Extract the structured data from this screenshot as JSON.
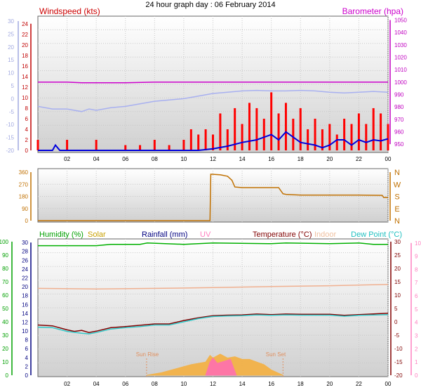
{
  "title": "24 hour graph day : 06 February 2014",
  "chart_data": [
    {
      "type": "line",
      "id": "wind_pressure",
      "title": "24 hour graph day : 06 February 2014",
      "x_ticks": [
        "02",
        "04",
        "06",
        "08",
        "10",
        "12",
        "14",
        "16",
        "18",
        "20",
        "22",
        "00"
      ],
      "x_range_hours": [
        0,
        24
      ],
      "legend": {
        "windspeed": "Windspeed (kts)",
        "barometer": "Barometer (hpa)"
      },
      "axes": {
        "temperature_left": {
          "ticks": [
            30,
            25,
            20,
            15,
            10,
            5,
            0,
            -5,
            -10,
            -15,
            -20
          ],
          "range": [
            -20,
            30
          ],
          "color": "#a0a0e0"
        },
        "windspeed_left": {
          "ticks": [
            24,
            22,
            20,
            18,
            16,
            14,
            12,
            10,
            8,
            6,
            4,
            2,
            0
          ],
          "range": [
            0,
            24.5
          ],
          "color": "#d00000"
        },
        "barometer_right": {
          "ticks": [
            1050,
            1040,
            1030,
            1020,
            1010,
            1000,
            990,
            980,
            970,
            960,
            950
          ],
          "range": [
            945,
            1052
          ],
          "color": "#c000c0"
        }
      },
      "series": [
        {
          "name": "Barometer (hpa)",
          "axis": "barometer_right",
          "color": "#cc00cc",
          "points": [
            [
              0,
              1000
            ],
            [
              2,
              1000
            ],
            [
              3,
              999.5
            ],
            [
              6,
              999.5
            ],
            [
              8,
              1000
            ],
            [
              9,
              1000
            ],
            [
              12,
              1000
            ],
            [
              14,
              1000
            ],
            [
              16,
              1000
            ],
            [
              18,
              1000
            ],
            [
              20,
              1000
            ],
            [
              22,
              1000
            ],
            [
              24,
              1000
            ]
          ]
        },
        {
          "name": "Dew Point",
          "axis": "temperature_left",
          "color": "#a8b0f0",
          "points": [
            [
              0,
              -3
            ],
            [
              1,
              -4
            ],
            [
              2,
              -4
            ],
            [
              3,
              -5
            ],
            [
              3.5,
              -4
            ],
            [
              4,
              -4.5
            ],
            [
              5,
              -3.5
            ],
            [
              6,
              -3
            ],
            [
              7,
              -2
            ],
            [
              8,
              -1
            ],
            [
              9,
              -0.5
            ],
            [
              10,
              0
            ],
            [
              11,
              1
            ],
            [
              12,
              2
            ],
            [
              13,
              2.5
            ],
            [
              14,
              3
            ],
            [
              15,
              3.2
            ],
            [
              16,
              3
            ],
            [
              17,
              3
            ],
            [
              18,
              3.2
            ],
            [
              19,
              3
            ],
            [
              20,
              2.5
            ],
            [
              21,
              2.2
            ],
            [
              22,
              2.5
            ],
            [
              23,
              2.8
            ],
            [
              24,
              2.5
            ]
          ]
        },
        {
          "name": "Wind gust",
          "axis": "windspeed_left",
          "color": "#ff0000",
          "points": [
            [
              0,
              2
            ],
            [
              2,
              2
            ],
            [
              4,
              2
            ],
            [
              6,
              1
            ],
            [
              7,
              1
            ],
            [
              8,
              2
            ],
            [
              9,
              1
            ],
            [
              10,
              2
            ],
            [
              10.5,
              4
            ],
            [
              11,
              3
            ],
            [
              11.5,
              4
            ],
            [
              12,
              3
            ],
            [
              12.5,
              7
            ],
            [
              13,
              4
            ],
            [
              13.5,
              8
            ],
            [
              14,
              5
            ],
            [
              14.5,
              9
            ],
            [
              15,
              8
            ],
            [
              15.5,
              6
            ],
            [
              16,
              11
            ],
            [
              16.5,
              7
            ],
            [
              17,
              9
            ],
            [
              17.5,
              6
            ],
            [
              18,
              8
            ],
            [
              18.5,
              4
            ],
            [
              19,
              6
            ],
            [
              19.5,
              4
            ],
            [
              20,
              5
            ],
            [
              20.5,
              3
            ],
            [
              21,
              6
            ],
            [
              21.5,
              5
            ],
            [
              22,
              7
            ],
            [
              22.5,
              5
            ],
            [
              23,
              8
            ],
            [
              23.5,
              7
            ],
            [
              24,
              5
            ]
          ]
        },
        {
          "name": "Windspeed (kts)",
          "axis": "windspeed_left",
          "color": "#0000dd",
          "points": [
            [
              0,
              0
            ],
            [
              1,
              0
            ],
            [
              1.2,
              1
            ],
            [
              1.5,
              0
            ],
            [
              3,
              0
            ],
            [
              6,
              0
            ],
            [
              9,
              0
            ],
            [
              11,
              0
            ],
            [
              12,
              0.3
            ],
            [
              13,
              0.8
            ],
            [
              14,
              1.5
            ],
            [
              15,
              2
            ],
            [
              15.5,
              2.5
            ],
            [
              16,
              3
            ],
            [
              16.5,
              2
            ],
            [
              17,
              3.5
            ],
            [
              17.5,
              2.5
            ],
            [
              18,
              1.5
            ],
            [
              19,
              1
            ],
            [
              19.5,
              0.5
            ],
            [
              20,
              1
            ],
            [
              20.5,
              2
            ],
            [
              21,
              2
            ],
            [
              21.5,
              1
            ],
            [
              22,
              2
            ],
            [
              22.5,
              1.5
            ],
            [
              23,
              2
            ],
            [
              23.5,
              1.8
            ],
            [
              24,
              2.2
            ]
          ]
        }
      ]
    },
    {
      "type": "line",
      "id": "wind_direction",
      "y_ticks": [
        360,
        270,
        180,
        90,
        0
      ],
      "y_range": [
        0,
        360
      ],
      "compass_labels": [
        "N",
        "W",
        "S",
        "E",
        "N"
      ],
      "series": [
        {
          "name": "Wind direction",
          "color": "#c07000",
          "points": [
            [
              0,
              0
            ],
            [
              11.8,
              0
            ],
            [
              11.85,
              345
            ],
            [
              12.5,
              340
            ],
            [
              13,
              330
            ],
            [
              13.3,
              300
            ],
            [
              13.5,
              250
            ],
            [
              14,
              245
            ],
            [
              16.5,
              245
            ],
            [
              16.8,
              200
            ],
            [
              17,
              195
            ],
            [
              18,
              190
            ],
            [
              20,
              190
            ],
            [
              22,
              190
            ],
            [
              23.6,
              188
            ],
            [
              23.7,
              172
            ],
            [
              24,
              172
            ]
          ]
        }
      ]
    },
    {
      "type": "line",
      "id": "temp_humidity",
      "legend": {
        "humidity": "Humidity (%)",
        "solar": "Solar",
        "rainfall": "Rainfall (mm)",
        "uv": "UV",
        "temperature": "Temperature (°C)",
        "indoor": "Indoor",
        "dewpoint": "Dew Point (°C)"
      },
      "axes": {
        "humidity_left": {
          "ticks": [
            100,
            90,
            80,
            70,
            60,
            50,
            40,
            30,
            20,
            10,
            0
          ],
          "range": [
            0,
            101
          ]
        },
        "rainfall_left": {
          "ticks": [
            30,
            28,
            26,
            24,
            22,
            20,
            18,
            16,
            14,
            12,
            10,
            8,
            6,
            4,
            2,
            0
          ],
          "range": [
            0,
            30.5
          ]
        },
        "temperature_right": {
          "ticks": [
            30,
            25,
            20,
            15,
            10,
            5,
            0,
            -5,
            -10,
            -15,
            -20
          ],
          "range": [
            -20,
            30.5
          ]
        },
        "uv_right": {
          "ticks": [
            10,
            9,
            8,
            7,
            6,
            5,
            4,
            3,
            2,
            1,
            0
          ],
          "range": [
            0,
            10.2
          ]
        }
      },
      "annotations": {
        "sunrise": "Sun Rise",
        "sunset": "Sun Set"
      },
      "sunrise_hour": 7.45,
      "sunset_hour": 16.8,
      "series": [
        {
          "name": "Humidity (%)",
          "axis": "humidity_left",
          "color": "#00b000",
          "points": [
            [
              0,
              97
            ],
            [
              4,
              97
            ],
            [
              5,
              98
            ],
            [
              7,
              98
            ],
            [
              7.5,
              99
            ],
            [
              10,
              98
            ],
            [
              11,
              98.5
            ],
            [
              12,
              99
            ],
            [
              16,
              98.5
            ],
            [
              17,
              99
            ],
            [
              20,
              98.5
            ],
            [
              22,
              99
            ],
            [
              23,
              98
            ],
            [
              24,
              98
            ]
          ]
        },
        {
          "name": "Indoor",
          "axis": "temperature_right",
          "color": "#f0b090",
          "points": [
            [
              0,
              12.5
            ],
            [
              4,
              12.3
            ],
            [
              8,
              12.5
            ],
            [
              12,
              12.8
            ],
            [
              16,
              13.2
            ],
            [
              20,
              13.5
            ],
            [
              24,
              14
            ]
          ]
        },
        {
          "name": "Temperature (°C)",
          "axis": "temperature_right",
          "color": "#800000",
          "points": [
            [
              0,
              -1.2
            ],
            [
              1,
              -1.5
            ],
            [
              2,
              -3
            ],
            [
              2.5,
              -3.6
            ],
            [
              3,
              -3.2
            ],
            [
              3.5,
              -4
            ],
            [
              4,
              -3.5
            ],
            [
              5,
              -2.2
            ],
            [
              6,
              -1.8
            ],
            [
              7,
              -1.3
            ],
            [
              8,
              -0.8
            ],
            [
              9,
              -0.8
            ],
            [
              10,
              0.5
            ],
            [
              11,
              1.5
            ],
            [
              12,
              2.3
            ],
            [
              13,
              2.5
            ],
            [
              14,
              2.6
            ],
            [
              15,
              2.9
            ],
            [
              16,
              2.7
            ],
            [
              17,
              2.9
            ],
            [
              18,
              2.8
            ],
            [
              20,
              2.8
            ],
            [
              21,
              2.4
            ],
            [
              22,
              2.7
            ],
            [
              24,
              3.2
            ]
          ]
        },
        {
          "name": "Dew Point (°C)",
          "axis": "temperature_right",
          "color": "#30c8c8",
          "points": [
            [
              0,
              -2
            ],
            [
              1,
              -2.2
            ],
            [
              2,
              -3.6
            ],
            [
              3,
              -4.3
            ],
            [
              3.5,
              -4.5
            ],
            [
              4,
              -4
            ],
            [
              5,
              -2.7
            ],
            [
              6,
              -2.2
            ],
            [
              7,
              -1.8
            ],
            [
              8,
              -1.2
            ],
            [
              9,
              -1.2
            ],
            [
              10,
              0
            ],
            [
              11,
              1.2
            ],
            [
              12,
              2
            ],
            [
              13,
              2.2
            ],
            [
              14,
              2.3
            ],
            [
              15,
              2.6
            ],
            [
              16,
              2.4
            ],
            [
              17,
              2.6
            ],
            [
              18,
              2.5
            ],
            [
              20,
              2.5
            ],
            [
              21,
              2.1
            ],
            [
              22,
              2.4
            ],
            [
              24,
              2.7
            ]
          ]
        },
        {
          "name": "Solar",
          "axis": "uv_right",
          "color": "#f5b040",
          "points": [
            [
              7.45,
              0
            ],
            [
              8.5,
              0.2
            ],
            [
              9.5,
              0.5
            ],
            [
              10.5,
              0.8
            ],
            [
              11.5,
              1.0
            ],
            [
              11.8,
              1.5
            ],
            [
              12,
              1.3
            ],
            [
              12.5,
              1.6
            ],
            [
              13,
              1.3
            ],
            [
              13.5,
              1.4
            ],
            [
              14,
              1.2
            ],
            [
              14.5,
              1.2
            ],
            [
              15,
              1.0
            ],
            [
              15.5,
              0.8
            ],
            [
              16,
              0.4
            ],
            [
              16.8,
              0
            ]
          ]
        },
        {
          "name": "UV",
          "axis": "uv_right",
          "color": "#ff70b0",
          "points": [
            [
              11.5,
              0
            ],
            [
              11.8,
              1.0
            ],
            [
              12,
              1.3
            ],
            [
              12.3,
              0.9
            ],
            [
              12.9,
              1.1
            ],
            [
              13.2,
              1.2
            ],
            [
              13.6,
              0
            ]
          ]
        }
      ]
    }
  ]
}
